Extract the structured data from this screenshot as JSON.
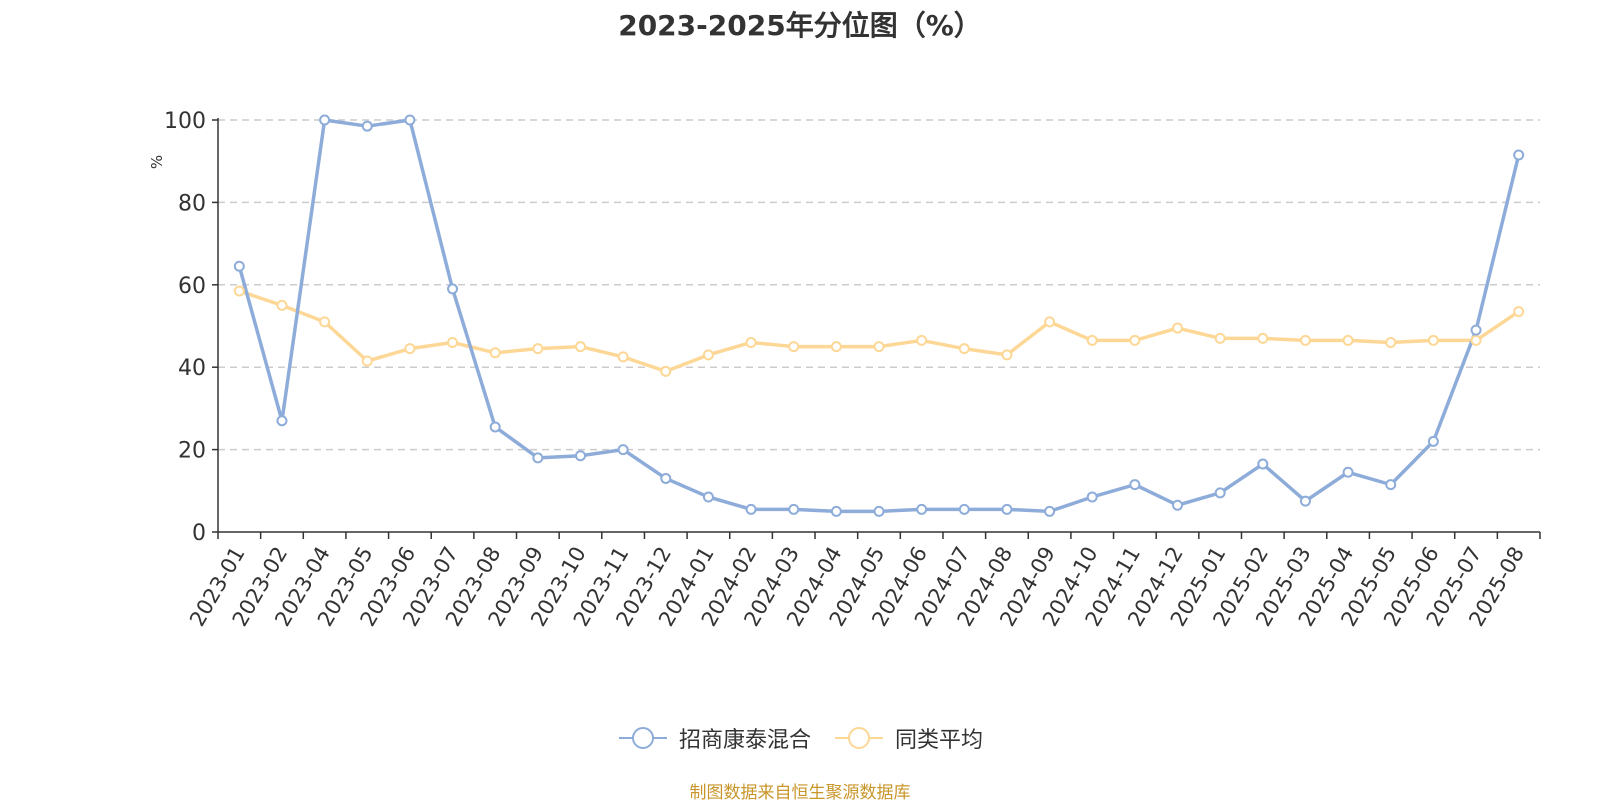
{
  "title": "2023-2025年分位图（%）",
  "source_note": "制图数据来自恒生聚源数据库",
  "colors": {
    "series_1": "#8eacd9",
    "series_2": "#fdd795",
    "grid": "#cccccc",
    "axis": "#333333",
    "unit_label": "#ff0000",
    "source_note": "#c8962a"
  },
  "chart_data": {
    "type": "line",
    "title": "2023-2025年分位图（%）",
    "ylabel": "%",
    "xlabel": "",
    "ylim": [
      0,
      100
    ],
    "yticks": [
      0,
      20,
      40,
      60,
      80,
      100
    ],
    "grid": true,
    "legend_position": "bottom",
    "categories": [
      "2023-01",
      "2023-02",
      "2023-04",
      "2023-05",
      "2023-06",
      "2023-07",
      "2023-08",
      "2023-09",
      "2023-10",
      "2023-11",
      "2023-12",
      "2024-01",
      "2024-02",
      "2024-03",
      "2024-04",
      "2024-05",
      "2024-06",
      "2024-07",
      "2024-08",
      "2024-09",
      "2024-10",
      "2024-11",
      "2024-12",
      "2025-01",
      "2025-02",
      "2025-03",
      "2025-04",
      "2025-05",
      "2025-06",
      "2025-07",
      "2025-08"
    ],
    "series": [
      {
        "name": "招商康泰混合",
        "color": "#8eacd9",
        "values": [
          64.5,
          27.0,
          100.0,
          98.5,
          100.0,
          59.0,
          25.5,
          18.0,
          18.5,
          20.0,
          13.0,
          8.5,
          5.5,
          5.5,
          5.0,
          5.0,
          5.5,
          5.5,
          5.5,
          5.0,
          8.5,
          11.5,
          6.5,
          9.5,
          16.5,
          7.5,
          14.5,
          11.5,
          22.0,
          49.0,
          91.5
        ]
      },
      {
        "name": "同类平均",
        "color": "#fdd795",
        "values": [
          58.5,
          55.0,
          51.0,
          41.5,
          44.5,
          46.0,
          43.5,
          44.5,
          45.0,
          42.5,
          39.0,
          43.0,
          46.0,
          45.0,
          45.0,
          45.0,
          46.5,
          44.5,
          43.0,
          51.0,
          46.5,
          46.5,
          49.5,
          47.0,
          47.0,
          46.5,
          46.5,
          46.0,
          46.5,
          46.5,
          53.5
        ]
      }
    ]
  }
}
